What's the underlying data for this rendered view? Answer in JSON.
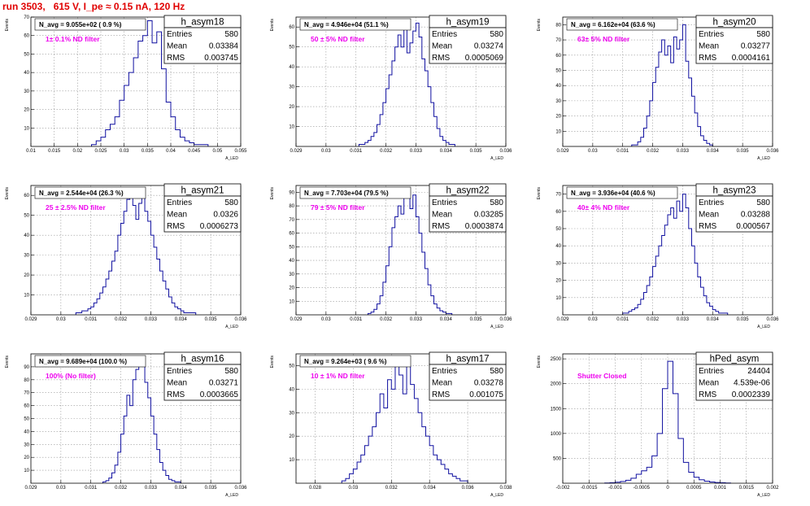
{
  "page": {
    "title": "run 3503,   615 V, I_pe ≈ 0.15 nA, 120 Hz"
  },
  "chart_data": [
    {
      "type": "histogram",
      "name": "h_asym18",
      "stats": {
        "entries_label": "Entries",
        "entries": "580",
        "mean_label": "Mean",
        "mean": "0.03384",
        "rms_label": "RMS",
        "rms": "0.003745"
      },
      "n_avg_label": "N_avg = 9.055e+02 ( 0.9 %)",
      "filter_label": "1± 0.1% ND filter",
      "xlabel": "A_LED",
      "ylabel": "Events",
      "xlim": [
        0.01,
        0.055
      ],
      "ylim": [
        0,
        70
      ],
      "xticks": [
        0.01,
        0.015,
        0.02,
        0.025,
        0.03,
        0.035,
        0.04,
        0.045,
        0.05,
        0.055
      ],
      "xtick_labels": [
        "0.01",
        "0.015",
        "0.02",
        "0.025",
        "0.03",
        "0.035",
        "0.04",
        "0.045",
        "0.05",
        "0.055"
      ],
      "yticks": [
        10,
        20,
        30,
        40,
        50,
        60,
        70
      ],
      "ytick_labels": [
        "10",
        "20",
        "30",
        "40",
        "50",
        "60",
        "70"
      ],
      "bin_edges": [
        0.023,
        0.024,
        0.025,
        0.026,
        0.027,
        0.028,
        0.029,
        0.03,
        0.031,
        0.032,
        0.033,
        0.034,
        0.035,
        0.036,
        0.037,
        0.038,
        0.039,
        0.04,
        0.041,
        0.042,
        0.043,
        0.044,
        0.045,
        0.046,
        0.047,
        0.048
      ],
      "counts": [
        1,
        3,
        5,
        9,
        12,
        16,
        25,
        33,
        40,
        48,
        57,
        60,
        68,
        56,
        62,
        42,
        24,
        16,
        9,
        5,
        3,
        2,
        1,
        1,
        1
      ]
    },
    {
      "type": "histogram",
      "name": "h_asym19",
      "stats": {
        "entries_label": "Entries",
        "entries": "580",
        "mean_label": "Mean",
        "mean": "0.03274",
        "rms_label": "RMS",
        "rms": "0.0005069"
      },
      "n_avg_label": "N_avg = 4.946e+04 (51.1 %)",
      "filter_label": "50 ± 5% ND filter",
      "xlabel": "A_LED",
      "ylabel": "Events",
      "xlim": [
        0.029,
        0.036
      ],
      "ylim": [
        0,
        65
      ],
      "xticks": [
        0.029,
        0.03,
        0.031,
        0.032,
        0.033,
        0.034,
        0.035,
        0.036
      ],
      "xtick_labels": [
        "0.029",
        "0.03",
        "0.031",
        "0.032",
        "0.033",
        "0.034",
        "0.035",
        "0.036"
      ],
      "yticks": [
        10,
        20,
        30,
        40,
        50,
        60
      ],
      "ytick_labels": [
        "10",
        "20",
        "30",
        "40",
        "50",
        "60"
      ],
      "bin_edges": [
        0.0311,
        0.0312,
        0.0313,
        0.0314,
        0.0315,
        0.0316,
        0.0317,
        0.0318,
        0.0319,
        0.032,
        0.0321,
        0.0322,
        0.0323,
        0.0324,
        0.0325,
        0.0326,
        0.0327,
        0.0328,
        0.0329,
        0.033,
        0.0331,
        0.0332,
        0.0333,
        0.0334,
        0.0335,
        0.0336,
        0.0337,
        0.0338,
        0.0339,
        0.034,
        0.0341,
        0.0342,
        0.0343
      ],
      "counts": [
        1,
        1,
        2,
        3,
        5,
        7,
        11,
        16,
        22,
        29,
        36,
        43,
        50,
        56,
        50,
        59,
        47,
        52,
        58,
        62,
        55,
        44,
        38,
        30,
        22,
        15,
        9,
        5,
        3,
        2,
        1,
        1
      ]
    },
    {
      "type": "histogram",
      "name": "h_asym20",
      "stats": {
        "entries_label": "Entries",
        "entries": "580",
        "mean_label": "Mean",
        "mean": "0.03277",
        "rms_label": "RMS",
        "rms": "0.0004161"
      },
      "n_avg_label": "N_avg = 6.162e+04 (63.6 %)",
      "filter_label": "63± 5% ND filter",
      "xlabel": "A_LED",
      "ylabel": "Events",
      "xlim": [
        0.029,
        0.036
      ],
      "ylim": [
        0,
        85
      ],
      "xticks": [
        0.029,
        0.03,
        0.031,
        0.032,
        0.033,
        0.034,
        0.035,
        0.036
      ],
      "xtick_labels": [
        "0.029",
        "0.03",
        "0.031",
        "0.032",
        "0.033",
        "0.034",
        "0.035",
        "0.036"
      ],
      "yticks": [
        10,
        20,
        30,
        40,
        50,
        60,
        70,
        80
      ],
      "ytick_labels": [
        "10",
        "20",
        "30",
        "40",
        "50",
        "60",
        "70",
        "80"
      ],
      "bin_edges": [
        0.0313,
        0.0314,
        0.0315,
        0.0316,
        0.0317,
        0.0318,
        0.0319,
        0.032,
        0.0321,
        0.0322,
        0.0323,
        0.0324,
        0.0325,
        0.0326,
        0.0327,
        0.0328,
        0.0329,
        0.033,
        0.0331,
        0.0332,
        0.0333,
        0.0334,
        0.0335,
        0.0336,
        0.0337,
        0.0338,
        0.0339,
        0.034
      ],
      "counts": [
        1,
        1,
        3,
        6,
        12,
        20,
        30,
        42,
        52,
        62,
        70,
        60,
        66,
        55,
        72,
        64,
        70,
        80,
        56,
        45,
        33,
        22,
        13,
        7,
        4,
        2,
        1
      ]
    },
    {
      "type": "histogram",
      "name": "h_asym21",
      "stats": {
        "entries_label": "Entries",
        "entries": "580",
        "mean_label": "Mean",
        "mean": "0.0326",
        "rms_label": "RMS",
        "rms": "0.0006273"
      },
      "n_avg_label": "N_avg = 2.544e+04 (26.3 %)",
      "filter_label": "25 ± 2.5% ND filter",
      "xlabel": "A_LED",
      "ylabel": "Events",
      "xlim": [
        0.029,
        0.036
      ],
      "ylim": [
        0,
        65
      ],
      "xticks": [
        0.029,
        0.03,
        0.031,
        0.032,
        0.033,
        0.034,
        0.035,
        0.036
      ],
      "xtick_labels": [
        "0.029",
        "0.03",
        "0.031",
        "0.032",
        "0.033",
        "0.034",
        "0.035",
        "0.036"
      ],
      "yticks": [
        10,
        20,
        30,
        40,
        50,
        60
      ],
      "ytick_labels": [
        "10",
        "20",
        "30",
        "40",
        "50",
        "60"
      ],
      "bin_edges": [
        0.0305,
        0.0306,
        0.0307,
        0.0308,
        0.0309,
        0.031,
        0.0311,
        0.0312,
        0.0313,
        0.0314,
        0.0315,
        0.0316,
        0.0317,
        0.0318,
        0.0319,
        0.032,
        0.0321,
        0.0322,
        0.0323,
        0.0324,
        0.0325,
        0.0326,
        0.0327,
        0.0328,
        0.0329,
        0.033,
        0.0331,
        0.0332,
        0.0333,
        0.0334,
        0.0335,
        0.0336,
        0.0337,
        0.0338,
        0.0339,
        0.034,
        0.0341,
        0.0342,
        0.0343,
        0.0344,
        0.0345
      ],
      "counts": [
        1,
        1,
        2,
        2,
        3,
        4,
        6,
        8,
        11,
        14,
        18,
        22,
        27,
        32,
        40,
        46,
        52,
        58,
        62,
        55,
        48,
        56,
        60,
        52,
        47,
        40,
        34,
        28,
        22,
        17,
        13,
        9,
        6,
        4,
        3,
        2,
        1,
        1,
        1,
        1
      ]
    },
    {
      "type": "histogram",
      "name": "h_asym22",
      "stats": {
        "entries_label": "Entries",
        "entries": "580",
        "mean_label": "Mean",
        "mean": "0.03285",
        "rms_label": "RMS",
        "rms": "0.0003874"
      },
      "n_avg_label": "N_avg = 7.703e+04 (79.5 %)",
      "filter_label": "79 ± 5% ND filter",
      "xlabel": "A_LED",
      "ylabel": "Events",
      "xlim": [
        0.029,
        0.036
      ],
      "ylim": [
        0,
        95
      ],
      "xticks": [
        0.029,
        0.03,
        0.031,
        0.032,
        0.033,
        0.034,
        0.035,
        0.036
      ],
      "xtick_labels": [
        "0.029",
        "0.03",
        "0.031",
        "0.032",
        "0.033",
        "0.034",
        "0.035",
        "0.036"
      ],
      "yticks": [
        10,
        20,
        30,
        40,
        50,
        60,
        70,
        80,
        90
      ],
      "ytick_labels": [
        "10",
        "20",
        "30",
        "40",
        "50",
        "60",
        "70",
        "80",
        "90"
      ],
      "bin_edges": [
        0.0314,
        0.0315,
        0.0316,
        0.0317,
        0.0318,
        0.0319,
        0.032,
        0.0321,
        0.0322,
        0.0323,
        0.0324,
        0.0325,
        0.0326,
        0.0327,
        0.0328,
        0.0329,
        0.033,
        0.0331,
        0.0332,
        0.0333,
        0.0334,
        0.0335,
        0.0336,
        0.0337,
        0.0338,
        0.0339,
        0.034,
        0.0341,
        0.0342
      ],
      "counts": [
        1,
        2,
        4,
        8,
        14,
        24,
        36,
        50,
        64,
        72,
        80,
        74,
        86,
        92,
        78,
        88,
        72,
        60,
        46,
        34,
        22,
        14,
        8,
        5,
        3,
        2,
        1,
        1
      ]
    },
    {
      "type": "histogram",
      "name": "h_asym23",
      "stats": {
        "entries_label": "Entries",
        "entries": "580",
        "mean_label": "Mean",
        "mean": "0.03288",
        "rms_label": "RMS",
        "rms": "0.000567"
      },
      "n_avg_label": "N_avg = 3.936e+04 (40.6 %)",
      "filter_label": "40± 4% ND filter",
      "xlabel": "A_LED",
      "ylabel": "Events",
      "xlim": [
        0.029,
        0.036
      ],
      "ylim": [
        0,
        75
      ],
      "xticks": [
        0.029,
        0.03,
        0.031,
        0.032,
        0.033,
        0.034,
        0.035,
        0.036
      ],
      "xtick_labels": [
        "0.029",
        "0.03",
        "0.031",
        "0.032",
        "0.033",
        "0.034",
        "0.035",
        "0.036"
      ],
      "yticks": [
        10,
        20,
        30,
        40,
        50,
        60,
        70
      ],
      "ytick_labels": [
        "10",
        "20",
        "30",
        "40",
        "50",
        "60",
        "70"
      ],
      "bin_edges": [
        0.031,
        0.0311,
        0.0312,
        0.0313,
        0.0314,
        0.0315,
        0.0316,
        0.0317,
        0.0318,
        0.0319,
        0.032,
        0.0321,
        0.0322,
        0.0323,
        0.0324,
        0.0325,
        0.0326,
        0.0327,
        0.0328,
        0.0329,
        0.033,
        0.0331,
        0.0332,
        0.0333,
        0.0334,
        0.0335,
        0.0336,
        0.0337,
        0.0338,
        0.0339,
        0.034,
        0.0341,
        0.0342,
        0.0343,
        0.0344,
        0.0345
      ],
      "counts": [
        1,
        1,
        2,
        3,
        4,
        6,
        9,
        13,
        17,
        22,
        28,
        34,
        40,
        46,
        52,
        58,
        62,
        56,
        66,
        60,
        70,
        62,
        50,
        40,
        30,
        22,
        16,
        11,
        7,
        5,
        3,
        2,
        1,
        1,
        1
      ]
    },
    {
      "type": "histogram",
      "name": "h_asym16",
      "stats": {
        "entries_label": "Entries",
        "entries": "580",
        "mean_label": "Mean",
        "mean": "0.03271",
        "rms_label": "RMS",
        "rms": "0.0003665"
      },
      "n_avg_label": "N_avg = 9.689e+04 (100.0 %)",
      "filter_label": "100% (No filter)",
      "xlabel": "A_LED",
      "ylabel": "Events",
      "xlim": [
        0.029,
        0.036
      ],
      "ylim": [
        0,
        100
      ],
      "xticks": [
        0.029,
        0.03,
        0.031,
        0.032,
        0.033,
        0.034,
        0.035,
        0.036
      ],
      "xtick_labels": [
        "0.029",
        "0.03",
        "0.031",
        "0.032",
        "0.033",
        "0.034",
        "0.035",
        "0.036"
      ],
      "yticks": [
        10,
        20,
        30,
        40,
        50,
        60,
        70,
        80,
        90
      ],
      "ytick_labels": [
        "10",
        "20",
        "30",
        "40",
        "50",
        "60",
        "70",
        "80",
        "90"
      ],
      "bin_edges": [
        0.0314,
        0.0315,
        0.0316,
        0.0317,
        0.0318,
        0.0319,
        0.032,
        0.0321,
        0.0322,
        0.0323,
        0.0324,
        0.0325,
        0.0326,
        0.0327,
        0.0328,
        0.0329,
        0.033,
        0.0331,
        0.0332,
        0.0333,
        0.0334,
        0.0335,
        0.0336,
        0.0337,
        0.0338,
        0.0339,
        0.034
      ],
      "counts": [
        1,
        2,
        4,
        8,
        14,
        24,
        38,
        52,
        68,
        60,
        80,
        88,
        92,
        96,
        78,
        66,
        52,
        38,
        26,
        16,
        10,
        6,
        3,
        2,
        1,
        1
      ]
    },
    {
      "type": "histogram",
      "name": "h_asym17",
      "stats": {
        "entries_label": "Entries",
        "entries": "580",
        "mean_label": "Mean",
        "mean": "0.03278",
        "rms_label": "RMS",
        "rms": "0.001075"
      },
      "n_avg_label": "N_avg = 9.264e+03 ( 9.6 %)",
      "filter_label": "10 ± 1% ND filter",
      "xlabel": "A_LED",
      "ylabel": "Events",
      "xlim": [
        0.027,
        0.038
      ],
      "ylim": [
        0,
        55
      ],
      "xticks": [
        0.028,
        0.03,
        0.032,
        0.034,
        0.036,
        0.038
      ],
      "xtick_labels": [
        "0.028",
        "0.03",
        "0.032",
        "0.034",
        "0.036",
        "0.038"
      ],
      "yticks": [
        10,
        20,
        30,
        40,
        50
      ],
      "ytick_labels": [
        "10",
        "20",
        "30",
        "40",
        "50"
      ],
      "bin_edges": [
        0.0294,
        0.0296,
        0.0298,
        0.03,
        0.0302,
        0.0304,
        0.0306,
        0.0308,
        0.031,
        0.0312,
        0.0314,
        0.0316,
        0.0318,
        0.032,
        0.0322,
        0.0324,
        0.0326,
        0.0328,
        0.033,
        0.0332,
        0.0334,
        0.0336,
        0.0338,
        0.034,
        0.0342,
        0.0344,
        0.0346,
        0.0348,
        0.035,
        0.0352,
        0.0354,
        0.0356,
        0.0358,
        0.036
      ],
      "counts": [
        1,
        2,
        4,
        6,
        9,
        12,
        16,
        20,
        24,
        30,
        38,
        32,
        44,
        40,
        52,
        46,
        38,
        50,
        42,
        36,
        30,
        24,
        20,
        16,
        12,
        10,
        8,
        6,
        4,
        3,
        2,
        1,
        1
      ]
    },
    {
      "type": "histogram",
      "name": "hPed_asym",
      "stats": {
        "entries_label": "Entries",
        "entries": "24404",
        "mean_label": "Mean",
        "mean": "4.539e-06",
        "rms_label": "RMS",
        "rms": "0.0002339"
      },
      "n_avg_label": "",
      "filter_label": "Shutter Closed",
      "xlabel": "A_LED",
      "ylabel": "Events",
      "xlim": [
        -0.002,
        0.002
      ],
      "ylim": [
        0,
        2600
      ],
      "xticks": [
        -0.002,
        -0.0015,
        -0.001,
        -0.0005,
        0,
        0.0005,
        0.001,
        0.0015,
        0.002
      ],
      "xtick_labels": [
        "-0.002",
        "-0.0015",
        "-0.001",
        "-0.0005",
        "0",
        "0.0005",
        "0.001",
        "0.0015",
        "0.002"
      ],
      "yticks": [
        500,
        1000,
        1500,
        2000,
        2500
      ],
      "ytick_labels": [
        "500",
        "1000",
        "1500",
        "2000",
        "2500"
      ],
      "bin_edges": [
        -0.0012,
        -0.0011,
        -0.001,
        -0.0009,
        -0.0008,
        -0.0007,
        -0.0006,
        -0.0005,
        -0.0004,
        -0.0003,
        -0.0002,
        -0.0001,
        0.0,
        0.0001,
        0.0002,
        0.0003,
        0.0004,
        0.0005,
        0.0006,
        0.0007,
        0.0008,
        0.0009,
        0.001,
        0.0011,
        0.0012
      ],
      "counts": [
        5,
        10,
        20,
        35,
        60,
        100,
        180,
        250,
        320,
        550,
        1000,
        1900,
        2450,
        1800,
        900,
        420,
        220,
        120,
        70,
        40,
        25,
        15,
        10,
        5
      ]
    }
  ]
}
